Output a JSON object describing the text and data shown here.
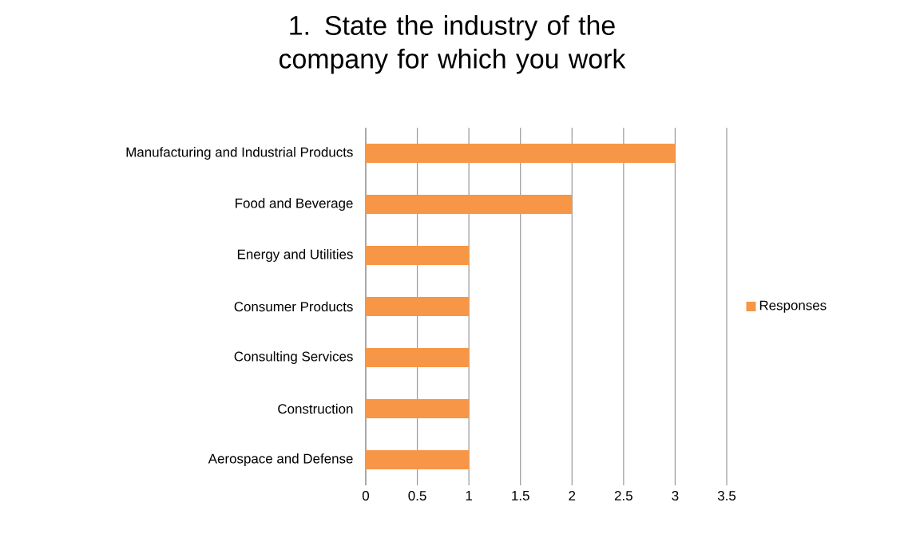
{
  "chart_data": {
    "type": "bar",
    "orientation": "horizontal",
    "title": "1. State the industry of the company for which you work",
    "categories": [
      "Manufacturing and Industrial Products",
      "Food and Beverage",
      "Energy and Utilities",
      "Consumer Products",
      "Consulting Services",
      "Construction",
      "Aerospace and Defense"
    ],
    "series": [
      {
        "name": "Responses",
        "color": "#f79646",
        "values": [
          3,
          2,
          1,
          1,
          1,
          1,
          1
        ]
      }
    ],
    "xlim": [
      0,
      3.5
    ],
    "xticks": [
      0,
      0.5,
      1,
      1.5,
      2,
      2.5,
      3,
      3.5
    ],
    "grid": "x",
    "legend": "right"
  }
}
